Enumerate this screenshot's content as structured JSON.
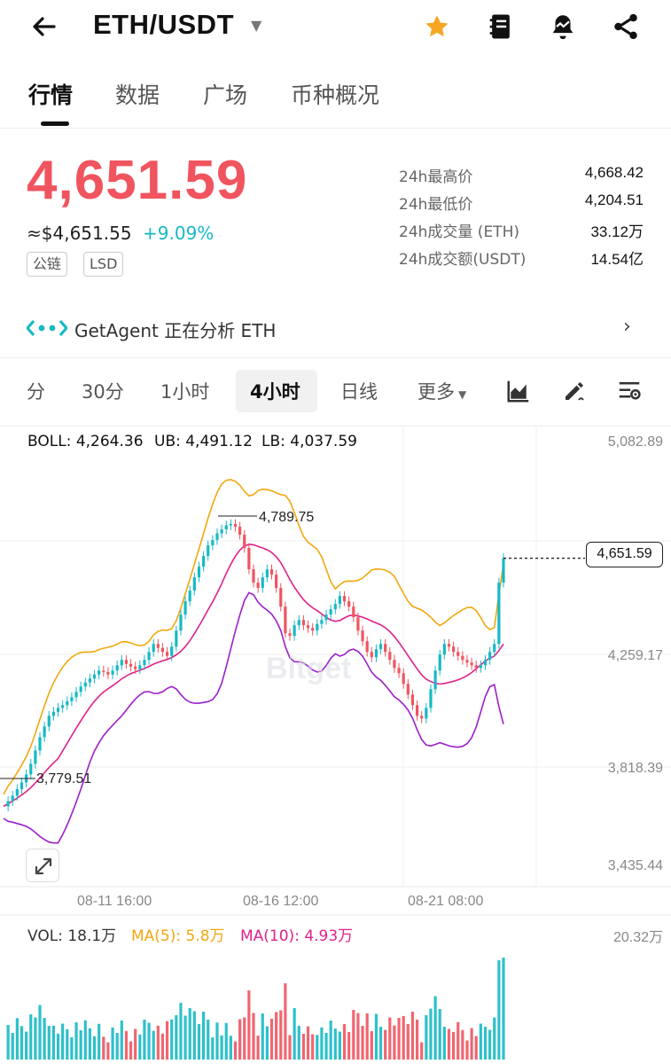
{
  "header": {
    "pair": "ETH/USDT",
    "icons": [
      "back-arrow-icon",
      "star-icon",
      "notebook-icon",
      "alert-bell-icon",
      "share-icon"
    ]
  },
  "tabs": [
    "行情",
    "数据",
    "广场",
    "币种概况"
  ],
  "price": {
    "last": "4,651.59",
    "usd": "≈$4,651.55",
    "change": "+9.09%",
    "tags": [
      "公链",
      "LSD"
    ],
    "colors": {
      "up": "#f0545f",
      "down": "#16b9c5"
    }
  },
  "stats": [
    {
      "label": "24h最高价",
      "value": "4,668.42"
    },
    {
      "label": "24h最低价",
      "value": "4,204.51"
    },
    {
      "label": "24h成交量 (ETH)",
      "value": "33.12万"
    },
    {
      "label": "24h成交额(USDT)",
      "value": "14.54亿"
    }
  ],
  "agent": {
    "text": "GetAgent 正在分析 ETH"
  },
  "intervals": [
    "分",
    "30分",
    "1小时",
    "4小时",
    "日线",
    "更多"
  ],
  "active_interval": "4小时",
  "tools": [
    "chart-type-icon",
    "draw-icon",
    "settings-icon"
  ],
  "indicators": {
    "boll": "BOLL: 4,264.36",
    "ub": "UB: 4,491.12",
    "lb": "LB: 4,037.59",
    "boll_color": "#e0218a",
    "ub_color": "#f0a80f",
    "lb_color": "#9b1fc9"
  },
  "y_axis": [
    "5,082.89",
    "4,259.17",
    "3,818.39",
    "3,435.44"
  ],
  "last_price_label": "4,651.59",
  "x_axis": [
    "08-11 16:00",
    "08-16 12:00",
    "08-21 08:00"
  ],
  "annotations": {
    "high": "4,789.75",
    "low": "3,779.51"
  },
  "watermark": "Bitget",
  "volume": {
    "vol": "VOL: 18.1万",
    "ma5": "MA(5): 5.8万",
    "ma10": "MA(10): 4.93万",
    "ymax": "20.32万"
  },
  "chart_data": {
    "type": "candlestick",
    "interval": "4小时",
    "x_ticks": [
      "08-11 16:00",
      "08-16 12:00",
      "08-21 08:00"
    ],
    "ylim": [
      3435.44,
      5082.89
    ],
    "y_ticks": [
      3435.44,
      3818.39,
      4259.17,
      5082.89
    ],
    "last": 4651.59,
    "high_annotation": 4789.75,
    "low_annotation": 3779.51,
    "closes": [
      3720,
      3740,
      3760,
      3785,
      3810,
      3840,
      3880,
      3930,
      3980,
      4020,
      4060,
      4075,
      4090,
      4100,
      4115,
      4130,
      4150,
      4170,
      4185,
      4200,
      4215,
      4230,
      4225,
      4215,
      4230,
      4250,
      4270,
      4255,
      4245,
      4235,
      4250,
      4270,
      4300,
      4330,
      4315,
      4300,
      4285,
      4320,
      4380,
      4440,
      4490,
      4530,
      4580,
      4620,
      4660,
      4700,
      4720,
      4745,
      4760,
      4775,
      4780,
      4770,
      4740,
      4690,
      4610,
      4560,
      4540,
      4580,
      4610,
      4590,
      4540,
      4470,
      4370,
      4360,
      4400,
      4420,
      4400,
      4390,
      4380,
      4405,
      4420,
      4440,
      4460,
      4480,
      4510,
      4490,
      4470,
      4430,
      4380,
      4340,
      4300,
      4280,
      4310,
      4330,
      4300,
      4270,
      4240,
      4220,
      4180,
      4140,
      4100,
      4060,
      4050,
      4090,
      4160,
      4230,
      4290,
      4330,
      4320,
      4300,
      4285,
      4270,
      4260,
      4250,
      4240,
      4250,
      4270,
      4300,
      4330,
      4560,
      4651.59
    ],
    "boll": {
      "mid": 4264.36,
      "upper": 4491.12,
      "lower": 4037.59
    },
    "volume": {
      "last": "18.1万",
      "ma5": "5.8万",
      "ma10": "4.93万",
      "ymax": "20.32万"
    }
  }
}
